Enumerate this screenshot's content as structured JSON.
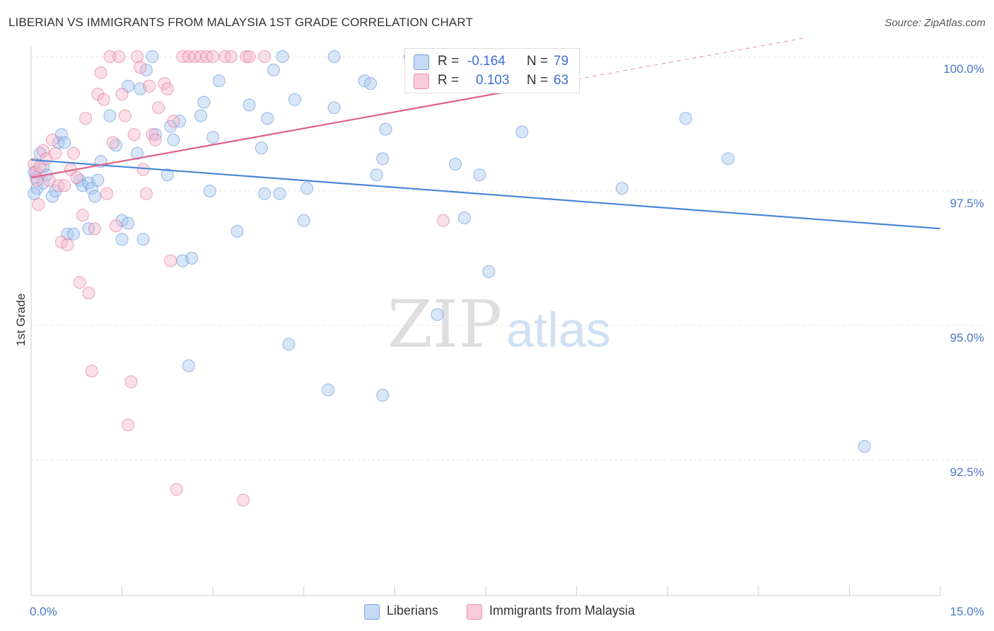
{
  "header": {
    "title": "LIBERIAN VS IMMIGRANTS FROM MALAYSIA 1ST GRADE CORRELATION CHART",
    "source": "Source: ZipAtlas.com"
  },
  "watermark": {
    "zip": "ZIP",
    "atlas": "atlas"
  },
  "legend": {
    "rows": [
      {
        "r_label": "R =",
        "r_value": "-0.164",
        "n_label": "N =",
        "n_value": "79",
        "color": "#a8c8f0"
      },
      {
        "r_label": "R =",
        "r_value": "0.103",
        "n_label": "N =",
        "n_value": "63",
        "color": "#f5b8cc"
      }
    ]
  },
  "bottom_legend": {
    "items": [
      {
        "label": "Liberians",
        "color": "#a8c8f0"
      },
      {
        "label": "Immigrants from Malaysia",
        "color": "#f5b8cc"
      }
    ]
  },
  "chart_data": {
    "type": "scatter",
    "ylabel": "1st Grade",
    "xlim": [
      0,
      15
    ],
    "ylim": [
      90.0,
      100.35
    ],
    "x_ticks": [
      "0.0%",
      "15.0%"
    ],
    "y_ticks": [
      {
        "value": 100.0,
        "label": "100.0%"
      },
      {
        "value": 97.5,
        "label": "97.5%"
      },
      {
        "value": 95.0,
        "label": "95.0%"
      },
      {
        "value": 92.5,
        "label": "92.5%"
      }
    ],
    "grid": true,
    "legend_position": "top-center",
    "series": [
      {
        "name": "Liberians",
        "color": "#4a86d8",
        "fill": "#a8c8f0",
        "trend": {
          "x0": 0.0,
          "y0": 98.08,
          "x1": 15.0,
          "y1": 96.8,
          "dashed_from": null
        },
        "points": [
          [
            0.05,
            97.85
          ],
          [
            0.08,
            97.75
          ],
          [
            0.1,
            97.55
          ],
          [
            0.15,
            98.2
          ],
          [
            0.2,
            97.65
          ],
          [
            0.2,
            97.95
          ],
          [
            0.25,
            97.8
          ],
          [
            0.35,
            97.4
          ],
          [
            0.4,
            97.5
          ],
          [
            0.45,
            98.4
          ],
          [
            0.5,
            98.55
          ],
          [
            0.55,
            98.4
          ],
          [
            0.6,
            96.7
          ],
          [
            0.7,
            96.7
          ],
          [
            0.8,
            97.7
          ],
          [
            0.85,
            97.6
          ],
          [
            0.95,
            96.8
          ],
          [
            0.95,
            97.65
          ],
          [
            1.0,
            97.55
          ],
          [
            1.05,
            97.4
          ],
          [
            1.1,
            97.7
          ],
          [
            1.15,
            98.05
          ],
          [
            1.3,
            98.9
          ],
          [
            1.4,
            98.35
          ],
          [
            1.5,
            96.6
          ],
          [
            1.5,
            96.95
          ],
          [
            1.6,
            99.45
          ],
          [
            1.6,
            96.9
          ],
          [
            1.75,
            98.2
          ],
          [
            1.8,
            99.4
          ],
          [
            1.85,
            96.6
          ],
          [
            1.9,
            99.75
          ],
          [
            2.0,
            100.0
          ],
          [
            2.05,
            98.55
          ],
          [
            2.25,
            97.8
          ],
          [
            2.3,
            98.7
          ],
          [
            2.35,
            98.45
          ],
          [
            2.45,
            98.8
          ],
          [
            2.5,
            96.2
          ],
          [
            2.6,
            94.25
          ],
          [
            2.65,
            96.25
          ],
          [
            2.8,
            98.9
          ],
          [
            2.85,
            99.15
          ],
          [
            2.95,
            97.5
          ],
          [
            3.0,
            98.5
          ],
          [
            3.1,
            99.55
          ],
          [
            3.4,
            96.75
          ],
          [
            3.6,
            99.1
          ],
          [
            3.8,
            98.3
          ],
          [
            3.85,
            97.45
          ],
          [
            3.9,
            98.85
          ],
          [
            4.0,
            99.75
          ],
          [
            4.1,
            97.45
          ],
          [
            4.15,
            100.0
          ],
          [
            4.25,
            94.65
          ],
          [
            4.35,
            99.2
          ],
          [
            4.5,
            96.95
          ],
          [
            4.55,
            97.55
          ],
          [
            4.9,
            93.8
          ],
          [
            5.0,
            99.05
          ],
          [
            5.0,
            100.0
          ],
          [
            5.5,
            99.55
          ],
          [
            5.6,
            99.5
          ],
          [
            5.7,
            97.8
          ],
          [
            5.8,
            93.7
          ],
          [
            5.8,
            98.1
          ],
          [
            5.85,
            98.65
          ],
          [
            6.25,
            100.0
          ],
          [
            6.7,
            95.2
          ],
          [
            7.0,
            98.0
          ],
          [
            7.15,
            97.0
          ],
          [
            7.4,
            97.8
          ],
          [
            7.55,
            96.0
          ],
          [
            8.1,
            98.6
          ],
          [
            9.75,
            97.55
          ],
          [
            10.8,
            98.85
          ],
          [
            11.5,
            98.1
          ],
          [
            13.75,
            92.75
          ],
          [
            0.05,
            97.45
          ]
        ]
      },
      {
        "name": "Immigrants from Malaysia",
        "color": "#e0608a",
        "fill": "#f5b8cc",
        "trend": {
          "x0": 0.0,
          "y0": 97.75,
          "x1": 15.0,
          "y1": 100.8,
          "dashed_from": 8.0
        },
        "points": [
          [
            0.05,
            98.0
          ],
          [
            0.08,
            97.85
          ],
          [
            0.1,
            97.7
          ],
          [
            0.12,
            97.25
          ],
          [
            0.15,
            97.95
          ],
          [
            0.2,
            98.25
          ],
          [
            0.25,
            98.1
          ],
          [
            0.3,
            97.7
          ],
          [
            0.35,
            98.45
          ],
          [
            0.4,
            98.2
          ],
          [
            0.45,
            97.6
          ],
          [
            0.5,
            96.55
          ],
          [
            0.55,
            97.6
          ],
          [
            0.6,
            96.5
          ],
          [
            0.65,
            97.9
          ],
          [
            0.7,
            98.2
          ],
          [
            0.75,
            97.75
          ],
          [
            0.8,
            95.8
          ],
          [
            0.85,
            97.05
          ],
          [
            0.9,
            98.85
          ],
          [
            0.95,
            95.6
          ],
          [
            1.0,
            94.15
          ],
          [
            1.05,
            96.8
          ],
          [
            1.1,
            99.3
          ],
          [
            1.15,
            99.7
          ],
          [
            1.2,
            99.2
          ],
          [
            1.25,
            97.45
          ],
          [
            1.3,
            100.0
          ],
          [
            1.35,
            98.4
          ],
          [
            1.4,
            96.85
          ],
          [
            1.45,
            100.0
          ],
          [
            1.5,
            99.3
          ],
          [
            1.55,
            98.9
          ],
          [
            1.6,
            93.15
          ],
          [
            1.65,
            93.95
          ],
          [
            1.7,
            98.55
          ],
          [
            1.75,
            100.0
          ],
          [
            1.8,
            99.8
          ],
          [
            1.85,
            97.9
          ],
          [
            1.9,
            97.45
          ],
          [
            1.95,
            99.45
          ],
          [
            2.0,
            98.55
          ],
          [
            2.05,
            98.45
          ],
          [
            2.1,
            99.05
          ],
          [
            2.2,
            99.5
          ],
          [
            2.25,
            99.4
          ],
          [
            2.3,
            96.2
          ],
          [
            2.35,
            98.8
          ],
          [
            2.4,
            91.95
          ],
          [
            2.5,
            100.0
          ],
          [
            2.6,
            100.0
          ],
          [
            2.7,
            100.0
          ],
          [
            2.8,
            100.0
          ],
          [
            2.9,
            100.0
          ],
          [
            3.0,
            100.0
          ],
          [
            3.2,
            100.0
          ],
          [
            3.3,
            100.0
          ],
          [
            3.5,
            91.75
          ],
          [
            3.55,
            100.0
          ],
          [
            3.6,
            100.0
          ],
          [
            3.85,
            100.0
          ],
          [
            6.8,
            96.95
          ],
          [
            7.2,
            100.0
          ]
        ]
      }
    ]
  }
}
